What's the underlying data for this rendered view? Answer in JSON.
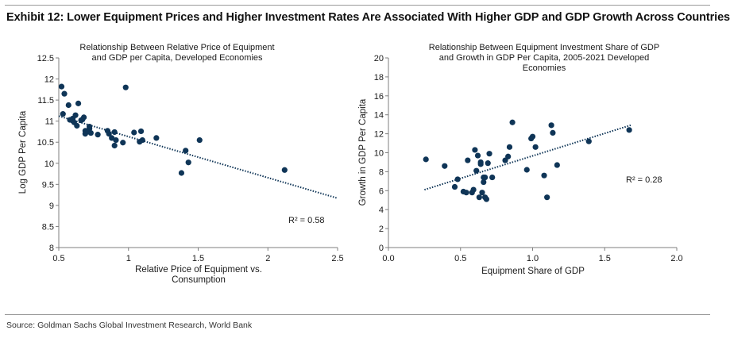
{
  "exhibit_title": "Exhibit 12: Lower Equipment Prices and Higher Investment Rates Are Associated With Higher GDP and GDP Growth Across Countries",
  "source": "Source: Goldman Sachs Global Investment Research, World Bank",
  "colors": {
    "marker": "#0f3557",
    "trendline": "#0f3557",
    "axis": "#7f7f7f",
    "text": "#1a1a1a"
  },
  "chart_data": [
    {
      "type": "scatter",
      "title_lines": [
        "Relationship Between Relative Price of Equipment",
        "and GDP per Capita, Developed Economies"
      ],
      "xlabel_lines": [
        "Relative Price of Equipment vs.",
        "Consumption"
      ],
      "ylabel": "Log GDP Per Capita",
      "xlim": [
        0.5,
        2.5
      ],
      "ylim": [
        8,
        12.5
      ],
      "x_ticks": [
        0.5,
        1.0,
        1.5,
        2.0,
        2.5
      ],
      "x_tick_labels": [
        "0.5",
        "1",
        "1.5",
        "2",
        "2.5"
      ],
      "y_ticks": [
        8,
        8.5,
        9,
        9.5,
        10,
        10.5,
        11,
        11.5,
        12,
        12.5
      ],
      "y_tick_labels": [
        "8",
        "8.5",
        "9",
        "9.5",
        "10",
        "10.5",
        "11",
        "11.5",
        "12",
        "12.5"
      ],
      "r2_label": "R² = 0.58",
      "trendline": {
        "x": [
          0.5,
          2.5
        ],
        "y": [
          11.12,
          9.17
        ]
      },
      "points": {
        "x": [
          0.52,
          0.53,
          0.54,
          0.57,
          0.58,
          0.6,
          0.6,
          0.61,
          0.62,
          0.63,
          0.64,
          0.66,
          0.67,
          0.68,
          0.69,
          0.69,
          0.71,
          0.72,
          0.72,
          0.73,
          0.78,
          0.85,
          0.86,
          0.88,
          0.9,
          0.9,
          0.91,
          0.96,
          0.98,
          1.04,
          1.08,
          1.09,
          1.1,
          1.2,
          1.38,
          1.41,
          1.43,
          1.51,
          2.12
        ],
        "y": [
          11.82,
          11.17,
          11.65,
          11.38,
          11.03,
          11.06,
          11.01,
          10.97,
          11.14,
          10.89,
          11.42,
          11.02,
          11.04,
          11.09,
          10.77,
          10.7,
          10.75,
          10.82,
          10.87,
          10.72,
          10.68,
          10.77,
          10.7,
          10.6,
          10.74,
          10.42,
          10.55,
          10.49,
          11.8,
          10.73,
          10.51,
          10.76,
          10.55,
          10.6,
          9.77,
          10.3,
          10.02,
          10.55,
          9.84
        ]
      }
    },
    {
      "type": "scatter",
      "title_lines": [
        "Relationship Between Equipment Investment Share of GDP",
        "and Growth in GDP Per Capita, 2005-2021 Developed",
        "Economies"
      ],
      "xlabel_lines": [
        "Equipment Share of GDP"
      ],
      "ylabel": "Growth in GDP Per Capita",
      "xlim": [
        0.0,
        2.0
      ],
      "ylim": [
        0,
        20
      ],
      "x_ticks": [
        0.0,
        0.5,
        1.0,
        1.5,
        2.0
      ],
      "x_tick_labels": [
        "0.0",
        "0.5",
        "1.0",
        "1.5",
        "2.0"
      ],
      "y_ticks": [
        0,
        2,
        4,
        6,
        8,
        10,
        12,
        14,
        16,
        18,
        20
      ],
      "y_tick_labels": [
        "0",
        "2",
        "4",
        "6",
        "8",
        "10",
        "12",
        "14",
        "16",
        "18",
        "20"
      ],
      "r2_label": "R² = 0.28",
      "trendline": {
        "x": [
          0.25,
          1.68
        ],
        "y": [
          6.1,
          12.9
        ]
      },
      "points": {
        "x": [
          0.26,
          0.39,
          0.46,
          0.48,
          0.52,
          0.54,
          0.55,
          0.58,
          0.59,
          0.6,
          0.61,
          0.62,
          0.63,
          0.64,
          0.64,
          0.65,
          0.66,
          0.66,
          0.67,
          0.67,
          0.68,
          0.69,
          0.7,
          0.72,
          0.81,
          0.83,
          0.84,
          0.86,
          0.96,
          0.99,
          1.0,
          1.02,
          1.08,
          1.1,
          1.13,
          1.14,
          1.17,
          1.39,
          1.67
        ],
        "y": [
          9.3,
          8.6,
          6.4,
          7.2,
          5.9,
          5.8,
          9.2,
          5.8,
          6.1,
          10.3,
          8.1,
          9.7,
          5.3,
          8.8,
          9.0,
          5.8,
          7.4,
          6.9,
          7.4,
          5.3,
          5.1,
          8.9,
          9.9,
          7.4,
          9.2,
          9.6,
          10.6,
          13.2,
          8.2,
          11.5,
          11.7,
          10.6,
          7.6,
          5.3,
          12.9,
          12.1,
          8.7,
          11.2,
          12.4
        ]
      }
    }
  ]
}
